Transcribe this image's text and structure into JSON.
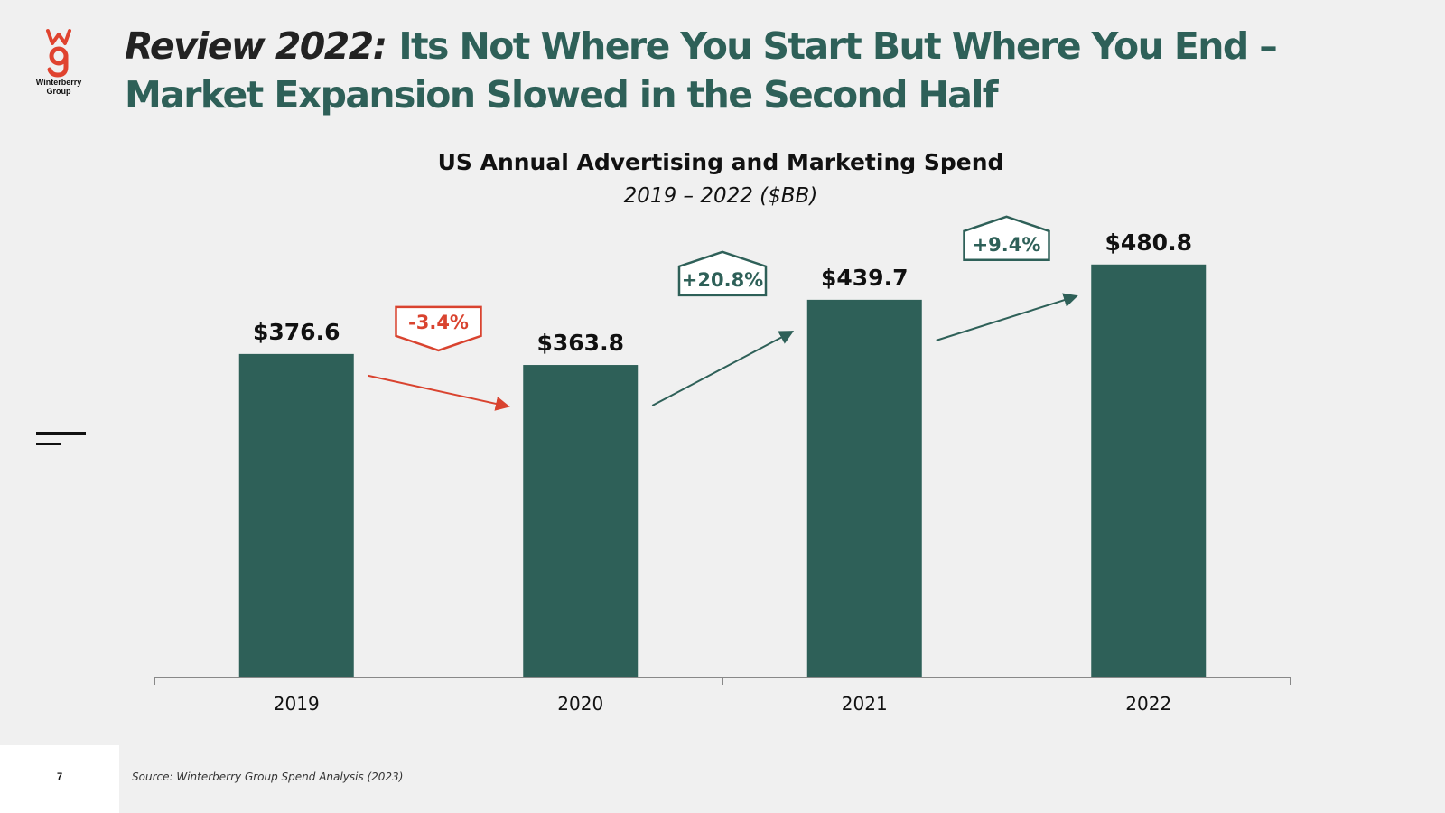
{
  "header": {
    "title_lead": "Review 2022:",
    "title_main": "Its Not Where You Start But Where You End – Market Expansion Slowed in the Second Half"
  },
  "logo": {
    "text_line1": "Winterberry",
    "text_line2": "Group",
    "icon": "winterberry-wg-logo"
  },
  "colors": {
    "bar": "#2e6058",
    "decline": "#d9432f",
    "growth": "#2e6058",
    "axis": "#888888",
    "background": "#f0f0f0"
  },
  "chart_data": {
    "type": "bar",
    "title": "US Annual Advertising and Marketing Spend",
    "subtitle": "2019 – 2022 ($BB)",
    "categories": [
      "2019",
      "2020",
      "2021",
      "2022"
    ],
    "values": [
      376.6,
      363.8,
      439.7,
      480.8
    ],
    "value_labels": [
      "$376.6",
      "$363.8",
      "$439.7",
      "$480.8"
    ],
    "ylim": [
      0,
      530
    ],
    "changes": [
      {
        "label": "-3.4%",
        "direction": "down"
      },
      {
        "label": "+20.8%",
        "direction": "up"
      },
      {
        "label": "+9.4%",
        "direction": "up"
      }
    ],
    "xlabel": "",
    "ylabel": ""
  },
  "footer": {
    "page_number": "7",
    "source": "Source: Winterberry Group Spend Analysis (2023)"
  }
}
